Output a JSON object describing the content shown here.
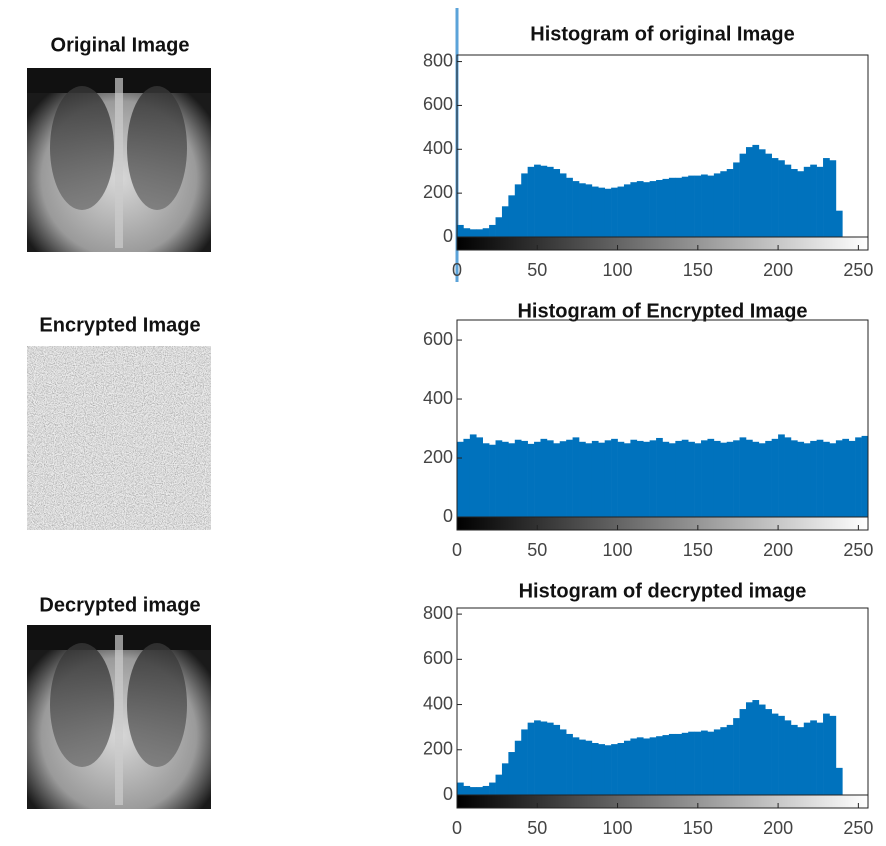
{
  "images": [
    {
      "title": "Original Image"
    },
    {
      "title": "Encrypted Image"
    },
    {
      "title": "Decrypted image"
    }
  ],
  "chart_data": [
    {
      "type": "histogram",
      "title": "Histogram of original Image",
      "color": "#0072bd",
      "bins": [
        0,
        4,
        8,
        12,
        16,
        20,
        24,
        28,
        32,
        36,
        40,
        44,
        48,
        52,
        56,
        60,
        64,
        68,
        72,
        76,
        80,
        84,
        88,
        92,
        96,
        100,
        104,
        108,
        112,
        116,
        120,
        124,
        128,
        132,
        136,
        140,
        144,
        148,
        152,
        156,
        160,
        164,
        168,
        172,
        176,
        180,
        184,
        188,
        192,
        196,
        200,
        204,
        208,
        212,
        216,
        220,
        224,
        228,
        232,
        236,
        240,
        244,
        248,
        252,
        256
      ],
      "values": [
        55,
        40,
        35,
        35,
        40,
        55,
        90,
        140,
        190,
        240,
        290,
        320,
        330,
        325,
        320,
        310,
        290,
        270,
        255,
        245,
        240,
        230,
        225,
        220,
        225,
        230,
        240,
        250,
        255,
        250,
        255,
        260,
        265,
        270,
        270,
        275,
        280,
        280,
        285,
        280,
        290,
        300,
        310,
        340,
        380,
        410,
        420,
        400,
        380,
        360,
        350,
        330,
        310,
        300,
        320,
        330,
        320,
        360,
        350,
        120,
        0,
        0,
        0,
        0
      ],
      "xlim": [
        0,
        256
      ],
      "ylim": [
        0,
        830
      ],
      "xticks": [
        0,
        50,
        100,
        150,
        200,
        250
      ],
      "yticks": [
        0,
        200,
        400,
        600,
        800
      ]
    },
    {
      "type": "histogram",
      "title": "Histogram of Encrypted Image",
      "color": "#0072bd",
      "bins": [
        0,
        4,
        8,
        12,
        16,
        20,
        24,
        28,
        32,
        36,
        40,
        44,
        48,
        52,
        56,
        60,
        64,
        68,
        72,
        76,
        80,
        84,
        88,
        92,
        96,
        100,
        104,
        108,
        112,
        116,
        120,
        124,
        128,
        132,
        136,
        140,
        144,
        148,
        152,
        156,
        160,
        164,
        168,
        172,
        176,
        180,
        184,
        188,
        192,
        196,
        200,
        204,
        208,
        212,
        216,
        220,
        224,
        228,
        232,
        236,
        240,
        244,
        248,
        252,
        256
      ],
      "values": [
        255,
        265,
        280,
        270,
        250,
        245,
        260,
        255,
        250,
        262,
        258,
        248,
        255,
        265,
        260,
        250,
        257,
        262,
        270,
        255,
        250,
        258,
        252,
        260,
        265,
        255,
        250,
        262,
        258,
        255,
        260,
        268,
        255,
        250,
        258,
        262,
        255,
        250,
        260,
        265,
        258,
        252,
        255,
        260,
        270,
        262,
        255,
        250,
        258,
        265,
        280,
        270,
        260,
        255,
        250,
        258,
        262,
        255,
        250,
        260,
        265,
        258,
        270,
        275
      ],
      "xlim": [
        0,
        256
      ],
      "ylim": [
        0,
        668
      ],
      "xticks": [
        0,
        50,
        100,
        150,
        200,
        250
      ],
      "yticks": [
        0,
        200,
        400,
        600
      ]
    },
    {
      "type": "histogram",
      "title": "Histogram of decrypted image",
      "color": "#0072bd",
      "bins": [
        0,
        4,
        8,
        12,
        16,
        20,
        24,
        28,
        32,
        36,
        40,
        44,
        48,
        52,
        56,
        60,
        64,
        68,
        72,
        76,
        80,
        84,
        88,
        92,
        96,
        100,
        104,
        108,
        112,
        116,
        120,
        124,
        128,
        132,
        136,
        140,
        144,
        148,
        152,
        156,
        160,
        164,
        168,
        172,
        176,
        180,
        184,
        188,
        192,
        196,
        200,
        204,
        208,
        212,
        216,
        220,
        224,
        228,
        232,
        236,
        240,
        244,
        248,
        252,
        256
      ],
      "values": [
        55,
        40,
        35,
        35,
        40,
        55,
        90,
        140,
        190,
        240,
        290,
        320,
        330,
        325,
        320,
        310,
        290,
        270,
        255,
        245,
        240,
        230,
        225,
        220,
        225,
        230,
        240,
        250,
        255,
        250,
        255,
        260,
        265,
        270,
        270,
        275,
        280,
        280,
        285,
        280,
        290,
        300,
        310,
        340,
        380,
        410,
        420,
        400,
        380,
        360,
        350,
        330,
        310,
        300,
        320,
        330,
        320,
        360,
        350,
        120,
        0,
        0,
        0,
        0
      ],
      "xlim": [
        0,
        256
      ],
      "ylim": [
        0,
        827
      ],
      "xticks": [
        0,
        50,
        100,
        150,
        200,
        250
      ],
      "yticks": [
        0,
        200,
        400,
        600,
        800
      ]
    }
  ]
}
